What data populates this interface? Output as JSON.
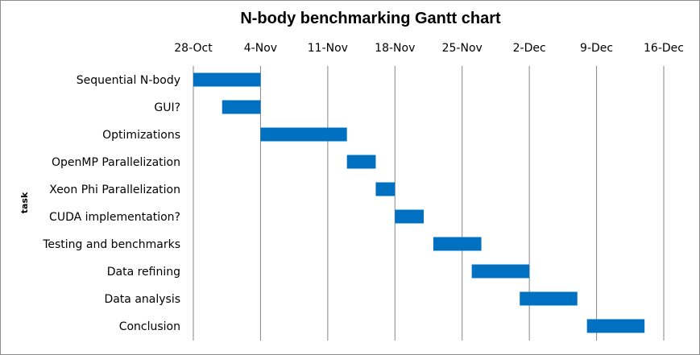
{
  "chart_data": {
    "type": "bar",
    "orientation": "horizontal-gantt",
    "title": "N-body benchmarking Gantt chart",
    "ylabel": "task",
    "xlabel": "",
    "x_ticks": [
      "28-Oct",
      "4-Nov",
      "11-Nov",
      "18-Nov",
      "25-Nov",
      "2-Dec",
      "9-Dec",
      "16-Dec"
    ],
    "x_axis_position": "top",
    "grid": "vertical",
    "bar_color": "#0070C0",
    "tasks": [
      {
        "label": "Sequential N-body",
        "start": "28-Oct",
        "end": "4-Nov"
      },
      {
        "label": "GUI?",
        "start": "31-Oct",
        "end": "4-Nov"
      },
      {
        "label": "Optimizations",
        "start": "4-Nov",
        "end": "13-Nov"
      },
      {
        "label": "OpenMP Parallelization",
        "start": "13-Nov",
        "end": "16-Nov"
      },
      {
        "label": "Xeon Phi Parallelization",
        "start": "16-Nov",
        "end": "18-Nov"
      },
      {
        "label": "CUDA implementation?",
        "start": "18-Nov",
        "end": "21-Nov"
      },
      {
        "label": "Testing and benchmarks",
        "start": "22-Nov",
        "end": "27-Nov"
      },
      {
        "label": "Data refining",
        "start": "26-Nov",
        "end": "2-Dec"
      },
      {
        "label": "Data analysis",
        "start": "1-Dec",
        "end": "7-Dec"
      },
      {
        "label": "Conclusion",
        "start": "8-Dec",
        "end": "14-Dec"
      }
    ]
  }
}
